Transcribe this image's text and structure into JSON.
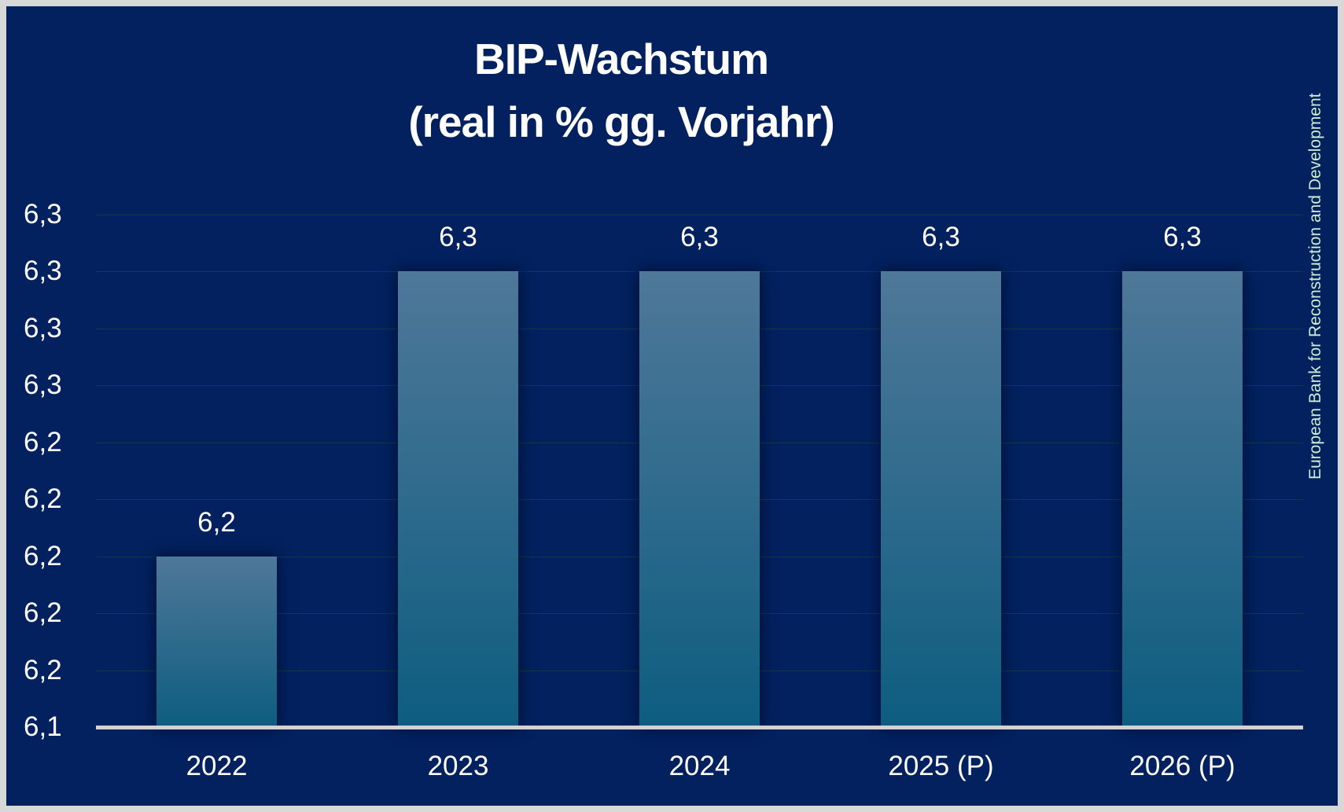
{
  "title": {
    "line1": "BIP-Wachstum",
    "line2": "(real in % gg. Vorjahr)"
  },
  "source_vertical": "European Bank for Reconstruction and Development",
  "chart_data": {
    "type": "bar",
    "title": "BIP-Wachstum (real in % gg. Vorjahr)",
    "xlabel": "",
    "ylabel": "",
    "categories": [
      "2022",
      "2023",
      "2024",
      "2025 (P)",
      "2026 (P)"
    ],
    "values": [
      6.2,
      6.3,
      6.3,
      6.3,
      6.3
    ],
    "bar_labels": [
      "6,2",
      "6,3",
      "6,3",
      "6,3",
      "6,3"
    ],
    "ylim": [
      6.14,
      6.32
    ],
    "y_tick_step": 0.02,
    "y_tick_labels_top_to_bottom": [
      "6,3",
      "6,3",
      "6,3",
      "6,3",
      "6,2",
      "6,2",
      "6,2",
      "6,2",
      "6,2",
      "6,1"
    ],
    "grid": "horizontal",
    "legend": "none",
    "decimal_style": "german-comma",
    "forecast_marker": "(P)",
    "source": "European Bank for Reconstruction and Development",
    "colors": {
      "background": "#02215E",
      "bar_gradient_top": "#4F7899",
      "bar_gradient_bottom": "#0D5D80",
      "gridline": "#0D3C4A",
      "axis_line": "#D2D2D2",
      "text": "#FFFFFF",
      "source_text": "#CDEED2",
      "border": "#D8D8D8"
    }
  }
}
